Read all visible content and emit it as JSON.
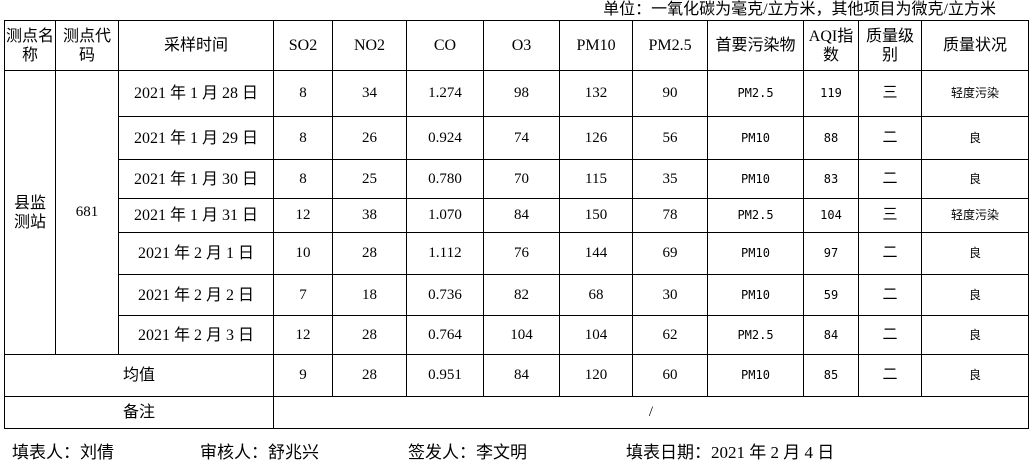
{
  "unit_note": "单位：一氧化碳为毫克/立方米，其他项目为微克/立方米",
  "headers": [
    "测点名称",
    "测点代码",
    "采样时间",
    "SO2",
    "NO2",
    "CO",
    "O3",
    "PM10",
    "PM2.5",
    "首要污染物",
    "AQI指数",
    "质量级别",
    "质量状况"
  ],
  "station_name": "县监测站",
  "station_code": "681",
  "rows": [
    {
      "date": "2021 年 1 月 28 日",
      "so2": "8",
      "no2": "34",
      "co": "1.274",
      "o3": "98",
      "pm10": "132",
      "pm25": "90",
      "primary": "PM2.5",
      "aqi": "119",
      "level": "三",
      "status": "轻度污染"
    },
    {
      "date": "2021 年 1 月 29 日",
      "so2": "8",
      "no2": "26",
      "co": "0.924",
      "o3": "74",
      "pm10": "126",
      "pm25": "56",
      "primary": "PM10",
      "aqi": "88",
      "level": "二",
      "status": "良"
    },
    {
      "date": "2021 年 1 月 30 日",
      "so2": "8",
      "no2": "25",
      "co": "0.780",
      "o3": "70",
      "pm10": "115",
      "pm25": "35",
      "primary": "PM10",
      "aqi": "83",
      "level": "二",
      "status": "良"
    },
    {
      "date": "2021 年 1 月 31 日",
      "so2": "12",
      "no2": "38",
      "co": "1.070",
      "o3": "84",
      "pm10": "150",
      "pm25": "78",
      "primary": "PM2.5",
      "aqi": "104",
      "level": "三",
      "status": "轻度污染"
    },
    {
      "date": "2021 年 2 月 1 日",
      "so2": "10",
      "no2": "28",
      "co": "1.112",
      "o3": "76",
      "pm10": "144",
      "pm25": "69",
      "primary": "PM10",
      "aqi": "97",
      "level": "二",
      "status": "良"
    },
    {
      "date": "2021 年 2 月 2 日",
      "so2": "7",
      "no2": "18",
      "co": "0.736",
      "o3": "82",
      "pm10": "68",
      "pm25": "30",
      "primary": "PM10",
      "aqi": "59",
      "level": "二",
      "status": "良"
    },
    {
      "date": "2021 年 2 月 3 日",
      "so2": "12",
      "no2": "28",
      "co": "0.764",
      "o3": "104",
      "pm10": "104",
      "pm25": "62",
      "primary": "PM2.5",
      "aqi": "84",
      "level": "二",
      "status": "良"
    }
  ],
  "average": {
    "label": "均值",
    "so2": "9",
    "no2": "28",
    "co": "0.951",
    "o3": "84",
    "pm10": "120",
    "pm25": "60",
    "primary": "PM10",
    "aqi": "85",
    "level": "二",
    "status": "良"
  },
  "remarks": {
    "label": "备注",
    "value": "/"
  },
  "footer": {
    "filler": "填表人：刘倩",
    "reviewer": "审核人：舒兆兴",
    "issuer": "签发人：李文明",
    "date": "填表日期：2021 年 2 月 4 日"
  }
}
